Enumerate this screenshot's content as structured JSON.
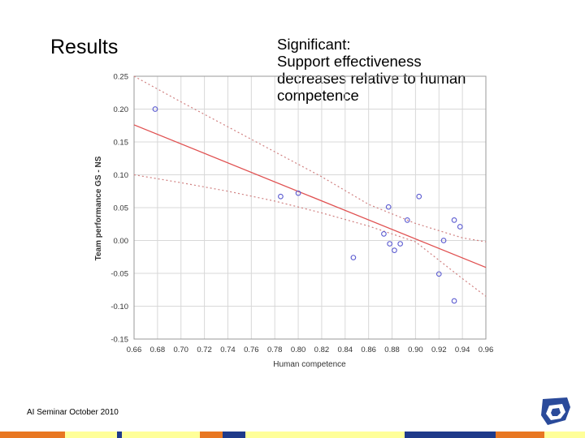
{
  "slide": {
    "title": "Results",
    "note_lines": [
      "Significant:",
      "Support effectiveness",
      "decreases relative to human",
      "competence"
    ],
    "footer": "AI Seminar October 2010"
  },
  "colors": {
    "point": "#5a5ad0",
    "fit_line": "#e05050",
    "band_line": "#d08080",
    "grid": "#d8d8d8",
    "axis_text": "#333333",
    "logo": "#2a4a9a"
  },
  "bottom_bar_colors": [
    "#e87722",
    "#ffff99",
    "#1f3a8a",
    "#ffff99",
    "#e87722",
    "#1f3a8a",
    "#ffff99",
    "#1f3a8a",
    "#e87722",
    "#ffff99"
  ],
  "chart_data": {
    "type": "scatter",
    "xlabel": "Human competence",
    "ylabel": "Team performance GS - NS",
    "xlim": [
      0.66,
      0.96
    ],
    "ylim": [
      -0.15,
      0.25
    ],
    "grid": true,
    "x_ticks": [
      "0.66",
      "0.68",
      "0.70",
      "0.72",
      "0.74",
      "0.76",
      "0.78",
      "0.80",
      "0.82",
      "0.84",
      "0.86",
      "0.88",
      "0.90",
      "0.92",
      "0.94",
      "0.96"
    ],
    "y_ticks": [
      "-0.15",
      "-0.10",
      "-0.05",
      "0.00",
      "0.05",
      "0.10",
      "0.15",
      "0.20",
      "0.25"
    ],
    "points": [
      {
        "x": 0.678,
        "y": 0.2
      },
      {
        "x": 0.785,
        "y": 0.067
      },
      {
        "x": 0.8,
        "y": 0.072
      },
      {
        "x": 0.847,
        "y": -0.026
      },
      {
        "x": 0.873,
        "y": 0.01
      },
      {
        "x": 0.877,
        "y": 0.051
      },
      {
        "x": 0.878,
        "y": -0.005
      },
      {
        "x": 0.882,
        "y": -0.015
      },
      {
        "x": 0.887,
        "y": -0.005
      },
      {
        "x": 0.893,
        "y": 0.031
      },
      {
        "x": 0.903,
        "y": 0.067
      },
      {
        "x": 0.92,
        "y": -0.051
      },
      {
        "x": 0.924,
        "y": 0.0
      },
      {
        "x": 0.933,
        "y": 0.031
      },
      {
        "x": 0.933,
        "y": -0.092
      },
      {
        "x": 0.938,
        "y": 0.021
      }
    ],
    "fit_line": {
      "x": [
        0.66,
        0.96
      ],
      "y": [
        0.176,
        -0.041
      ]
    },
    "confidence_band": {
      "x": [
        0.66,
        0.7,
        0.74,
        0.78,
        0.82,
        0.86,
        0.9,
        0.94,
        0.96
      ],
      "upper": [
        0.25,
        0.211,
        0.173,
        0.135,
        0.097,
        0.055,
        0.026,
        0.004,
        -0.002
      ],
      "lower": [
        0.1,
        0.088,
        0.075,
        0.06,
        0.042,
        0.022,
        -0.002,
        -0.058,
        -0.085
      ]
    }
  }
}
